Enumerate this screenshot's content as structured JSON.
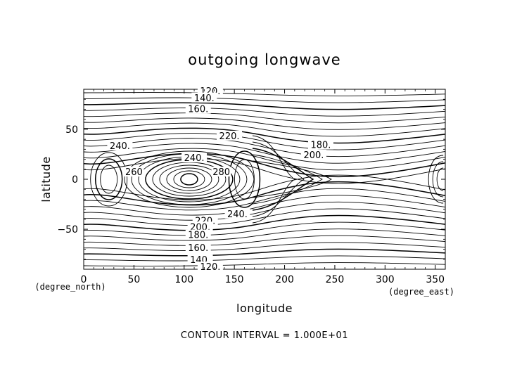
{
  "chart_data": {
    "type": "contour",
    "title": "outgoing longwave",
    "xlabel": "longitude",
    "ylabel": "latitude",
    "x_unit": "(degree_east)",
    "y_unit": "(degree_north)",
    "xlim": [
      0,
      360
    ],
    "ylim": [
      -90,
      90
    ],
    "x_ticks": [
      0,
      50,
      100,
      150,
      200,
      250,
      300,
      350
    ],
    "y_ticks": [
      -50,
      0,
      50
    ],
    "contour_interval_text": "CONTOUR INTERVAL = 1.000E+01",
    "grid": false,
    "contour_labels": [
      {
        "text": "120.",
        "lon": 126,
        "lat": 88
      },
      {
        "text": "140.",
        "lon": 120,
        "lat": 81
      },
      {
        "text": "160.",
        "lon": 114,
        "lat": 70
      },
      {
        "text": "220.",
        "lon": 145,
        "lat": 43
      },
      {
        "text": "240.",
        "lon": 36,
        "lat": 33
      },
      {
        "text": "180.",
        "lon": 236,
        "lat": 34
      },
      {
        "text": "200.",
        "lon": 229,
        "lat": 24
      },
      {
        "text": "240.",
        "lon": 110,
        "lat": 21
      },
      {
        "text": "260",
        "lon": 50,
        "lat": 7
      },
      {
        "text": "280",
        "lon": 137,
        "lat": 7
      },
      {
        "text": "240.",
        "lon": 153,
        "lat": -35
      },
      {
        "text": "220.",
        "lon": 121,
        "lat": -42
      },
      {
        "text": "200.",
        "lon": 116,
        "lat": -48
      },
      {
        "text": "180.",
        "lon": 114,
        "lat": -56
      },
      {
        "text": "160.",
        "lon": 114,
        "lat": -69
      },
      {
        "text": "140.",
        "lon": 116,
        "lat": -81
      },
      {
        "text": "120.",
        "lon": 126,
        "lat": -88
      }
    ]
  }
}
